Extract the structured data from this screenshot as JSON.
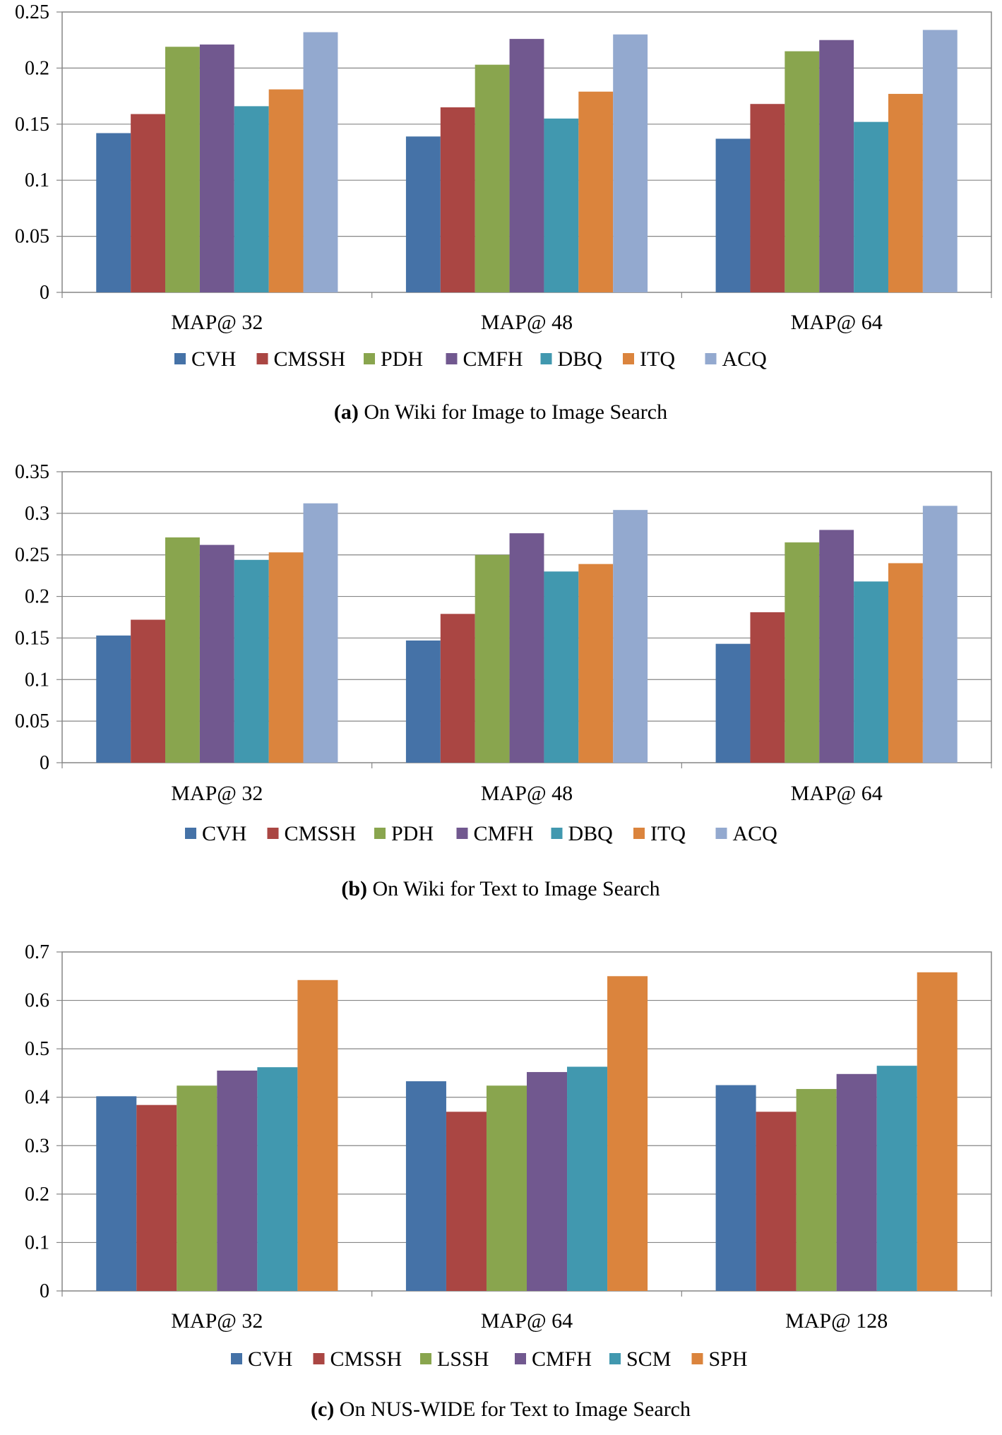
{
  "chart_data": [
    {
      "type": "bar",
      "caption_letter": "(a)",
      "caption_text": "On Wiki for Image to Image Search",
      "categories": [
        "MAP@ 32",
        "MAP@ 48",
        "MAP@ 64"
      ],
      "ylim": [
        0,
        0.25
      ],
      "yticks": [
        "0",
        "0.05",
        "0.1",
        "0.15",
        "0.2",
        "0.25"
      ],
      "ytick_values": [
        0,
        0.05,
        0.1,
        0.15,
        0.2,
        0.25
      ],
      "grid": true,
      "legend_position": "bottom",
      "series": [
        {
          "name": "CVH",
          "color": "#4572A7",
          "values": [
            0.142,
            0.139,
            0.137
          ]
        },
        {
          "name": "CMSSH",
          "color": "#AA4643",
          "values": [
            0.159,
            0.165,
            0.168
          ]
        },
        {
          "name": "PDH",
          "color": "#89A54E",
          "values": [
            0.219,
            0.203,
            0.215
          ]
        },
        {
          "name": "CMFH",
          "color": "#71588F",
          "values": [
            0.221,
            0.226,
            0.225
          ]
        },
        {
          "name": "DBQ",
          "color": "#4198AF",
          "values": [
            0.166,
            0.155,
            0.152
          ]
        },
        {
          "name": "ITQ",
          "color": "#DB843D",
          "values": [
            0.181,
            0.179,
            0.177
          ]
        },
        {
          "name": "ACQ",
          "color": "#93A9CF",
          "values": [
            0.232,
            0.23,
            0.234
          ]
        }
      ]
    },
    {
      "type": "bar",
      "caption_letter": "(b)",
      "caption_text": "On Wiki for Text to Image Search",
      "categories": [
        "MAP@ 32",
        "MAP@ 48",
        "MAP@ 64"
      ],
      "ylim": [
        0,
        0.35
      ],
      "yticks": [
        "0",
        "0.05",
        "0.1",
        "0.15",
        "0.2",
        "0.25",
        "0.3",
        "0.35"
      ],
      "ytick_values": [
        0,
        0.05,
        0.1,
        0.15,
        0.2,
        0.25,
        0.3,
        0.35
      ],
      "grid": true,
      "legend_position": "bottom",
      "series": [
        {
          "name": "CVH",
          "color": "#4572A7",
          "values": [
            0.153,
            0.147,
            0.143
          ]
        },
        {
          "name": "CMSSH",
          "color": "#AA4643",
          "values": [
            0.172,
            0.179,
            0.181
          ]
        },
        {
          "name": "PDH",
          "color": "#89A54E",
          "values": [
            0.271,
            0.25,
            0.265
          ]
        },
        {
          "name": "CMFH",
          "color": "#71588F",
          "values": [
            0.262,
            0.276,
            0.28
          ]
        },
        {
          "name": "DBQ",
          "color": "#4198AF",
          "values": [
            0.244,
            0.23,
            0.218
          ]
        },
        {
          "name": "ITQ",
          "color": "#DB843D",
          "values": [
            0.253,
            0.239,
            0.24
          ]
        },
        {
          "name": "ACQ",
          "color": "#93A9CF",
          "values": [
            0.312,
            0.304,
            0.309
          ]
        }
      ]
    },
    {
      "type": "bar",
      "caption_letter": "(c)",
      "caption_text": "On NUS-WIDE for Text to Image Search",
      "categories": [
        "MAP@ 32",
        "MAP@ 64",
        "MAP@ 128"
      ],
      "ylim": [
        0,
        0.7
      ],
      "yticks": [
        "0",
        "0.1",
        "0.2",
        "0.3",
        "0.4",
        "0.5",
        "0.6",
        "0.7"
      ],
      "ytick_values": [
        0,
        0.1,
        0.2,
        0.3,
        0.4,
        0.5,
        0.6,
        0.7
      ],
      "grid": true,
      "legend_position": "bottom",
      "series": [
        {
          "name": "CVH",
          "color": "#4572A7",
          "values": [
            0.402,
            0.433,
            0.425
          ]
        },
        {
          "name": "CMSSH",
          "color": "#AA4643",
          "values": [
            0.384,
            0.37,
            0.37
          ]
        },
        {
          "name": "LSSH",
          "color": "#89A54E",
          "values": [
            0.424,
            0.424,
            0.417
          ]
        },
        {
          "name": "CMFH",
          "color": "#71588F",
          "values": [
            0.455,
            0.452,
            0.448
          ]
        },
        {
          "name": "SCM",
          "color": "#4198AF",
          "values": [
            0.462,
            0.463,
            0.465
          ]
        },
        {
          "name": "SPH",
          "color": "#DB843D",
          "values": [
            0.642,
            0.65,
            0.658
          ]
        }
      ]
    }
  ]
}
